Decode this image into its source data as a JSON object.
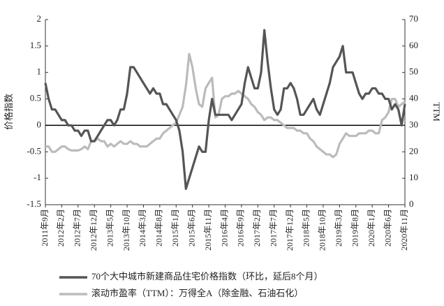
{
  "chart_data": {
    "type": "line",
    "ylabel": "价格指数",
    "y2label": "TTM",
    "categories": [
      "2011年9月",
      null,
      null,
      null,
      null,
      "2012年2月",
      null,
      null,
      null,
      null,
      "2012年7月",
      null,
      null,
      null,
      null,
      "2012年12月",
      null,
      null,
      null,
      null,
      "2013年5月",
      null,
      null,
      null,
      null,
      "2013年10月",
      null,
      null,
      null,
      null,
      "2014年3月",
      null,
      null,
      null,
      null,
      "2014年8月",
      null,
      null,
      null,
      null,
      "2015年1月",
      null,
      null,
      null,
      null,
      "2015年6月",
      null,
      null,
      null,
      null,
      "2015年11月",
      null,
      null,
      null,
      null,
      "2016年4月",
      null,
      null,
      null,
      null,
      "2016年9月",
      null,
      null,
      null,
      null,
      "2017年2月",
      null,
      null,
      null,
      null,
      "2017年7月",
      null,
      null,
      null,
      null,
      "2017年12月",
      null,
      null,
      null,
      null,
      "2018年5月",
      null,
      null,
      null,
      null,
      "2018年10月",
      null,
      null,
      null,
      null,
      "2019年3月",
      null,
      null,
      null,
      null,
      "2019年8月",
      null,
      null,
      null,
      null,
      "2020年1月",
      null,
      null,
      null,
      null,
      "2020年6月",
      null,
      null,
      null,
      null,
      "2020年11月"
    ],
    "series": [
      {
        "name": "70个大中城市新建商品住宅价格指数（环比，延后8个月）",
        "color": "#555555",
        "axis": "y",
        "values": [
          0.8,
          0.5,
          0.3,
          0.3,
          0.2,
          0.1,
          0.1,
          0,
          0,
          -0.1,
          -0.1,
          -0.2,
          -0.1,
          -0.1,
          -0.3,
          -0.3,
          -0.2,
          -0.1,
          0,
          0.1,
          0.1,
          0,
          0.1,
          0.3,
          0.3,
          0.6,
          1.1,
          1.1,
          1.0,
          0.9,
          0.8,
          0.7,
          0.6,
          0.7,
          0.6,
          0.6,
          0.4,
          0.4,
          0.3,
          0.2,
          0.1,
          -0.1,
          -0.5,
          -1.2,
          -1.0,
          -0.8,
          -0.6,
          -0.4,
          -0.5,
          -0.5,
          0.1,
          0.5,
          0.2,
          0.2,
          0.2,
          0.2,
          0.2,
          0.1,
          0.2,
          0.3,
          0.4,
          0.8,
          1.1,
          0.9,
          0.7,
          0.7,
          1.0,
          1.8,
          1.2,
          0.7,
          0.3,
          0.2,
          0.3,
          0.7,
          0.7,
          0.8,
          0.7,
          0.5,
          0.2,
          0.2,
          0.3,
          0.4,
          0.5,
          0.3,
          0.2,
          0.4,
          0.6,
          0.8,
          1.1,
          1.2,
          1.3,
          1.5,
          1.0,
          1.0,
          1.0,
          0.8,
          0.6,
          0.5,
          0.6,
          0.6,
          0.7,
          0.7,
          0.6,
          0.6,
          0.5,
          0.5,
          0.3,
          0.4,
          0.3,
          0,
          0.4
        ]
      },
      {
        "name": "滚动市盈率（TTM）：万得全A（除金融、石油石化）",
        "color": "#bbbbbb",
        "axis": "y2",
        "values": [
          22,
          22,
          20,
          20,
          21,
          22,
          22,
          21,
          20.5,
          20.5,
          20.5,
          21,
          22,
          21,
          24,
          24,
          25,
          24,
          24,
          22,
          23,
          22,
          23,
          24,
          23,
          23,
          24,
          23,
          23,
          22,
          22,
          22,
          23,
          24,
          25,
          25,
          27,
          28,
          29,
          30,
          31,
          34,
          37,
          45,
          57,
          52,
          44,
          38,
          37,
          44,
          46,
          48,
          33,
          34,
          40,
          41,
          41,
          42,
          42,
          43,
          42,
          41,
          40,
          38,
          37,
          35,
          34,
          32,
          33,
          33,
          32,
          32,
          31,
          30,
          29,
          29,
          29,
          28,
          28,
          27,
          27,
          25,
          24,
          22,
          21,
          20,
          19,
          19,
          18,
          19,
          23,
          25,
          27,
          26,
          26,
          26,
          27,
          27,
          27,
          28,
          28,
          27,
          27,
          32,
          33,
          35,
          40,
          40,
          37,
          38,
          39
        ]
      }
    ],
    "ylim": [
      -1.5,
      2
    ],
    "yticks": [
      -1.5,
      -1,
      -0.5,
      0,
      0.5,
      1,
      1.5,
      2
    ],
    "y2lim": [
      0,
      70
    ],
    "y2ticks": [
      0,
      10,
      20,
      30,
      40,
      50,
      60,
      70
    ]
  }
}
